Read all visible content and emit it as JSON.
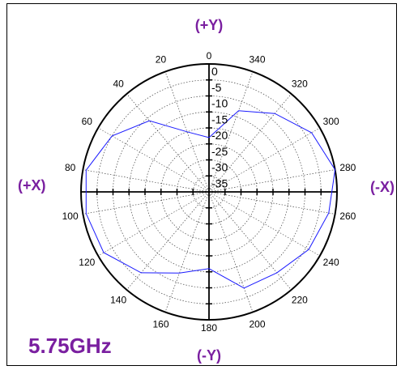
{
  "chart_data": {
    "type": "polar-line",
    "title": "5.75GHz",
    "angle_ticks": [
      "0",
      "20",
      "40",
      "60",
      "80",
      "100",
      "120",
      "140",
      "160",
      "180",
      "200",
      "220",
      "240",
      "260",
      "280",
      "300",
      "320",
      "340"
    ],
    "angle_tick_values": [
      0,
      20,
      40,
      60,
      80,
      100,
      120,
      140,
      160,
      180,
      200,
      220,
      240,
      260,
      280,
      300,
      320,
      340
    ],
    "radial_ticks": [
      "0",
      "-5",
      "-10",
      "-15",
      "-20",
      "-25",
      "-30",
      "-35"
    ],
    "radial_tick_values": [
      0,
      -5,
      -10,
      -15,
      -20,
      -25,
      -30,
      -35
    ],
    "r_range": [
      -40,
      0
    ],
    "direction": "clockwise-from-top",
    "angle_labels_direction": "counterclockwise",
    "axis_labels": {
      "top": "(+Y)",
      "bottom": "(-Y)",
      "left": "(+X)",
      "right": "(-X)"
    },
    "series": [
      {
        "color": "#1a1aff",
        "points": [
          {
            "angle": 0,
            "r": -23
          },
          {
            "angle": 20,
            "r": -20
          },
          {
            "angle": 40,
            "r": -11
          },
          {
            "angle": 60,
            "r": -5
          },
          {
            "angle": 80,
            "r": -1
          },
          {
            "angle": 100,
            "r": -1
          },
          {
            "angle": 120,
            "r": -2
          },
          {
            "angle": 140,
            "r": -7
          },
          {
            "angle": 160,
            "r": -13
          },
          {
            "angle": 180,
            "r": -16
          },
          {
            "angle": 200,
            "r": -8
          },
          {
            "angle": 220,
            "r": -7
          },
          {
            "angle": 240,
            "r": -4
          },
          {
            "angle": 260,
            "r": -2
          },
          {
            "angle": 280,
            "r": 0
          },
          {
            "angle": 300,
            "r": -3
          },
          {
            "angle": 320,
            "r": -8
          },
          {
            "angle": 340,
            "r": -13
          },
          {
            "angle": 360,
            "r": -23
          }
        ]
      }
    ],
    "grid": true
  }
}
